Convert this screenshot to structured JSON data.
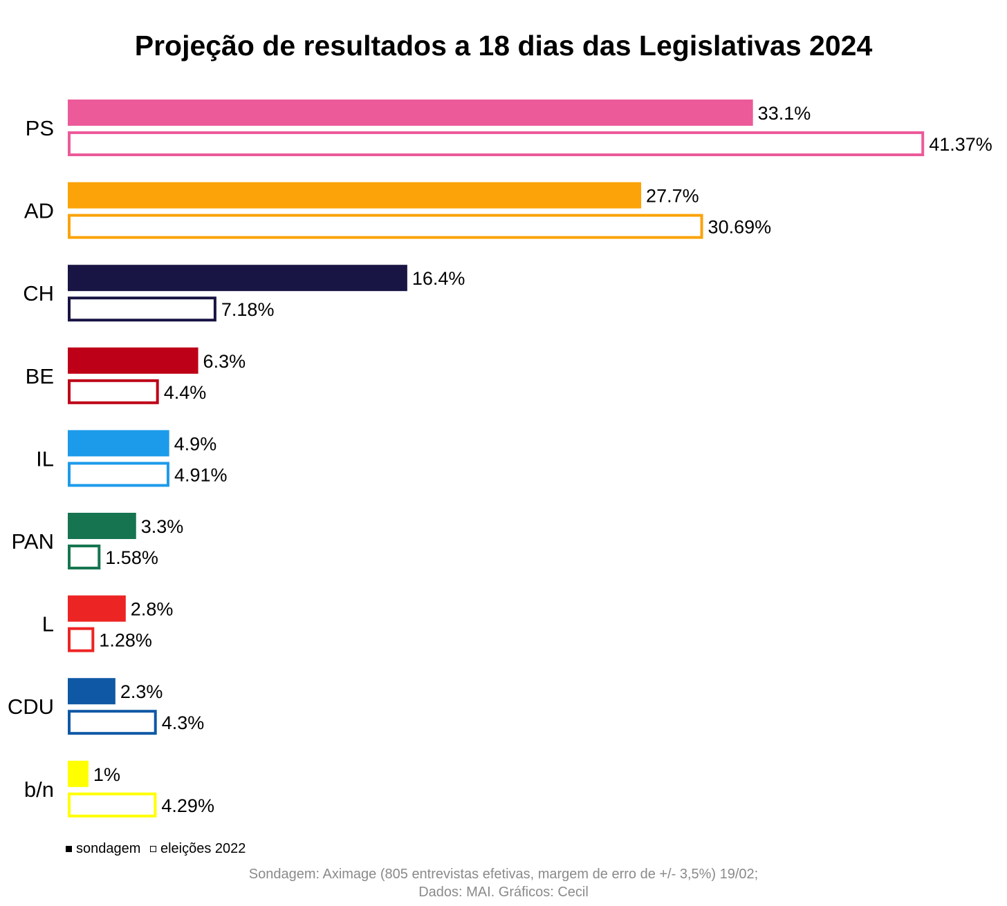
{
  "chart_data": {
    "type": "bar",
    "orientation": "horizontal",
    "title": "Projeção de resultados a 18 dias das Legislativas 2024",
    "categories": [
      "PS",
      "AD",
      "CH",
      "BE",
      "IL",
      "PAN",
      "L",
      "CDU",
      "b/n"
    ],
    "colors": [
      "#ec5a9a",
      "#fba308",
      "#181443",
      "#bd0017",
      "#1c9bea",
      "#167550",
      "#ed2424",
      "#0f58a5",
      "#ffff00"
    ],
    "series": [
      {
        "name": "sondagem",
        "style": "filled",
        "values": [
          33.1,
          27.7,
          16.4,
          6.3,
          4.9,
          3.3,
          2.8,
          2.3,
          1
        ],
        "labels": [
          "33.1%",
          "27.7%",
          "16.4%",
          "6.3%",
          "4.9%",
          "3.3%",
          "2.8%",
          "2.3%",
          "1%"
        ]
      },
      {
        "name": "eleições 2022",
        "style": "outline",
        "values": [
          41.37,
          30.69,
          7.18,
          4.4,
          4.91,
          1.58,
          1.28,
          4.3,
          4.29
        ],
        "labels": [
          "41.37%",
          "30.69%",
          "7.18%",
          "4.4%",
          "4.91%",
          "1.58%",
          "1.28%",
          "4.3%",
          "4.29%"
        ]
      }
    ],
    "grid": false,
    "legend_position": "bottom-left"
  },
  "legend": {
    "filled_label": "sondagem",
    "hollow_label": "eleições 2022"
  },
  "source": {
    "line1": "Sondagem: Aximage (805 entrevistas efetivas, margem de erro de +/- 3,5%) 19/02;",
    "line2": "Dados: MAI. Gráficos: Cecil"
  }
}
